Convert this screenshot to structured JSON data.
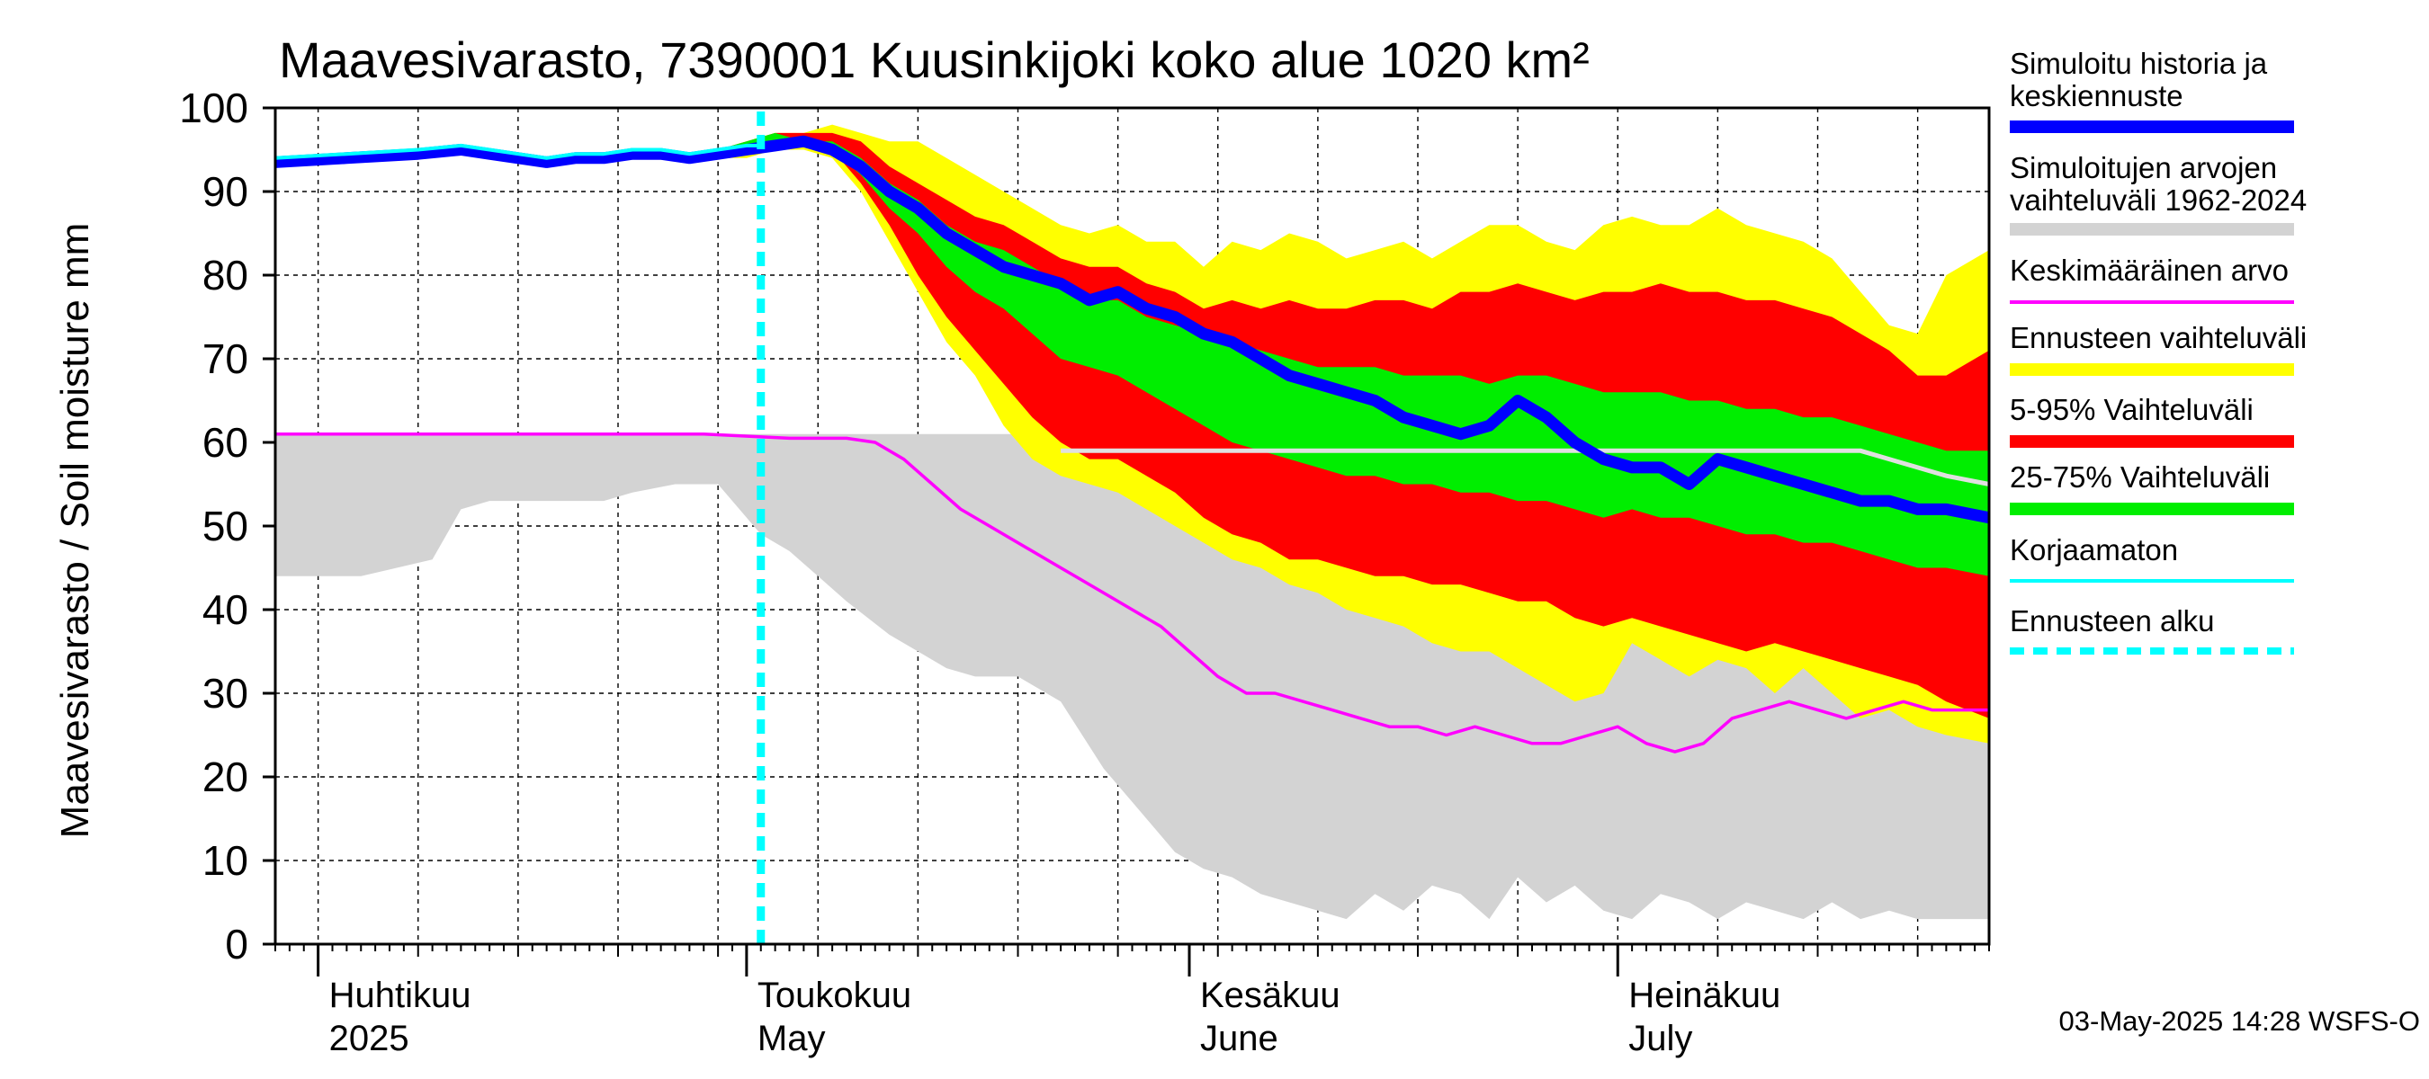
{
  "chart_data": {
    "type": "area",
    "title": "Maavesivarasto, 7390001 Kuusinkijoki koko alue 1020 km²",
    "ylabel": "Maavesivarasto / Soil moisture   mm",
    "ylim": [
      0,
      100
    ],
    "yticks": [
      0,
      10,
      20,
      30,
      40,
      50,
      60,
      70,
      80,
      90,
      100
    ],
    "x_domain_days": [
      0,
      120
    ],
    "x_start_date": "2025-03-29",
    "forecast_start_day": 34,
    "month_labels": [
      {
        "fi": "Huhtikuu",
        "en": "2025",
        "day": 3
      },
      {
        "fi": "Toukokuu",
        "en": "May",
        "day": 33
      },
      {
        "fi": "Kesäkuu",
        "en": "June",
        "day": 64
      },
      {
        "fi": "Heinäkuu",
        "en": "July",
        "day": 94
      }
    ],
    "month_boundaries": [
      3,
      33,
      64,
      94
    ],
    "series": [
      {
        "name": "Simuloitujen arvojen vaihteluväli 1962-2024",
        "kind": "band",
        "color": "#d3d3d3",
        "x": [
          0,
          6,
          11,
          13,
          15,
          18,
          21,
          23,
          25,
          28,
          31,
          34,
          36,
          38,
          40,
          43,
          45,
          47,
          49,
          52,
          55,
          58,
          61,
          63,
          65,
          67,
          69,
          71,
          73,
          75,
          77,
          79,
          81,
          83,
          85,
          87,
          89,
          91,
          93,
          95,
          97,
          99,
          101,
          103,
          105,
          107,
          109,
          111,
          113,
          115,
          117,
          120
        ],
        "low": [
          44,
          44,
          46,
          52,
          53,
          53,
          53,
          53,
          54,
          55,
          55,
          49,
          47,
          44,
          41,
          37,
          35,
          33,
          32,
          32,
          29,
          21,
          15,
          11,
          9,
          8,
          6,
          5,
          4,
          3,
          6,
          4,
          7,
          6,
          3,
          8,
          5,
          7,
          4,
          3,
          6,
          5,
          3,
          5,
          4,
          3,
          5,
          3,
          4,
          3,
          3,
          3
        ],
        "high": [
          61,
          61,
          61,
          61,
          61,
          61,
          61,
          61,
          61,
          61,
          61,
          61,
          61,
          61,
          61,
          61,
          61,
          61,
          61,
          61,
          60,
          60,
          60,
          60,
          60,
          60,
          60,
          60,
          60,
          60,
          60,
          60,
          60,
          60,
          60,
          60,
          60,
          60,
          60,
          60,
          60,
          60,
          60,
          60,
          60,
          60,
          60,
          60,
          59,
          58,
          57,
          56
        ]
      },
      {
        "name": "Ennusteen vaihteluväli",
        "kind": "band",
        "color": "#ffff00",
        "x": [
          31,
          33,
          35,
          37,
          39,
          41,
          43,
          45,
          47,
          49,
          51,
          53,
          55,
          57,
          59,
          61,
          63,
          65,
          67,
          69,
          71,
          73,
          75,
          77,
          79,
          81,
          83,
          85,
          87,
          89,
          91,
          93,
          95,
          97,
          99,
          101,
          103,
          105,
          107,
          109,
          111,
          113,
          115,
          117,
          120
        ],
        "low": [
          94,
          94,
          95,
          95,
          94,
          90,
          84,
          78,
          72,
          68,
          62,
          58,
          56,
          55,
          54,
          52,
          50,
          48,
          46,
          45,
          43,
          42,
          40,
          39,
          38,
          36,
          35,
          35,
          33,
          31,
          29,
          30,
          36,
          34,
          32,
          34,
          33,
          30,
          33,
          30,
          27,
          28,
          26,
          25,
          24
        ],
        "high": [
          95,
          96,
          97,
          97,
          98,
          97,
          96,
          96,
          94,
          92,
          90,
          88,
          86,
          85,
          86,
          84,
          84,
          81,
          84,
          83,
          85,
          84,
          82,
          83,
          84,
          82,
          84,
          86,
          86,
          84,
          83,
          86,
          87,
          86,
          86,
          88,
          86,
          85,
          84,
          82,
          78,
          74,
          73,
          80,
          83
        ]
      },
      {
        "name": "5-95% Vaihteluväli",
        "kind": "band",
        "color": "#ff0000",
        "x": [
          31,
          33,
          35,
          37,
          39,
          41,
          43,
          45,
          47,
          49,
          51,
          53,
          55,
          57,
          59,
          61,
          63,
          65,
          67,
          69,
          71,
          73,
          75,
          77,
          79,
          81,
          83,
          85,
          87,
          89,
          91,
          93,
          95,
          97,
          99,
          101,
          103,
          105,
          107,
          109,
          111,
          113,
          115,
          117,
          120
        ],
        "low": [
          94,
          95,
          96,
          96,
          95,
          91,
          86,
          80,
          75,
          71,
          67,
          63,
          60,
          58,
          58,
          56,
          54,
          51,
          49,
          48,
          46,
          46,
          45,
          44,
          44,
          43,
          43,
          42,
          41,
          41,
          39,
          38,
          39,
          38,
          37,
          36,
          35,
          36,
          35,
          34,
          33,
          32,
          31,
          29,
          27
        ],
        "high": [
          95,
          96,
          97,
          97,
          97,
          96,
          93,
          91,
          89,
          87,
          86,
          84,
          82,
          81,
          81,
          79,
          78,
          76,
          77,
          76,
          77,
          76,
          76,
          77,
          77,
          76,
          78,
          78,
          79,
          78,
          77,
          78,
          78,
          79,
          78,
          78,
          77,
          77,
          76,
          75,
          73,
          71,
          68,
          68,
          71
        ]
      },
      {
        "name": "25-75% Vaihteluväli",
        "kind": "band",
        "color": "#00ee00",
        "x": [
          31,
          33,
          35,
          37,
          39,
          41,
          43,
          45,
          47,
          49,
          51,
          53,
          55,
          57,
          59,
          61,
          63,
          65,
          67,
          69,
          71,
          73,
          75,
          77,
          79,
          81,
          83,
          85,
          87,
          89,
          91,
          93,
          95,
          97,
          99,
          101,
          103,
          105,
          107,
          109,
          111,
          113,
          115,
          117,
          120
        ],
        "low": [
          94,
          95,
          96,
          96,
          95,
          92,
          88,
          85,
          81,
          78,
          76,
          73,
          70,
          69,
          68,
          66,
          64,
          62,
          60,
          59,
          58,
          57,
          56,
          56,
          55,
          55,
          54,
          54,
          53,
          53,
          52,
          51,
          52,
          51,
          51,
          50,
          49,
          49,
          48,
          48,
          47,
          46,
          45,
          45,
          44
        ],
        "high": [
          95,
          96,
          97,
          96,
          96,
          94,
          91,
          89,
          86,
          84,
          83,
          81,
          79,
          77,
          77,
          75,
          74,
          73,
          72,
          71,
          70,
          69,
          69,
          69,
          68,
          68,
          68,
          67,
          68,
          68,
          67,
          66,
          66,
          66,
          65,
          65,
          64,
          64,
          63,
          63,
          62,
          61,
          60,
          59,
          59
        ]
      },
      {
        "name": "Keskimääräinen arvo",
        "kind": "line",
        "color": "#ff00ff",
        "x": [
          0,
          10,
          20,
          30,
          36,
          40,
          42,
          44,
          46,
          48,
          50,
          52,
          54,
          56,
          58,
          60,
          62,
          64,
          66,
          68,
          70,
          72,
          74,
          76,
          78,
          80,
          82,
          84,
          86,
          88,
          90,
          92,
          94,
          96,
          98,
          100,
          102,
          104,
          106,
          108,
          110,
          112,
          114,
          116,
          118,
          120
        ],
        "values": [
          61,
          61,
          61,
          61,
          60.5,
          60.5,
          60,
          58,
          55,
          52,
          50,
          48,
          46,
          44,
          42,
          40,
          38,
          35,
          32,
          30,
          30,
          29,
          28,
          27,
          26,
          26,
          25,
          26,
          25,
          24,
          24,
          25,
          26,
          24,
          23,
          24,
          27,
          28,
          29,
          28,
          27,
          28,
          29,
          28,
          28,
          28
        ]
      },
      {
        "name": "Simuloitu historia ja keskiennuste",
        "kind": "line",
        "color": "#0000ff",
        "x": [
          0,
          5,
          10,
          13,
          15,
          17,
          19,
          21,
          23,
          25,
          27,
          29,
          31,
          33,
          35,
          37,
          39,
          41,
          43,
          45,
          47,
          49,
          51,
          53,
          55,
          57,
          59,
          61,
          63,
          65,
          67,
          69,
          71,
          73,
          75,
          77,
          79,
          81,
          83,
          85,
          87,
          89,
          91,
          93,
          95,
          97,
          99,
          101,
          103,
          105,
          107,
          109,
          111,
          113,
          115,
          117,
          120
        ],
        "values": [
          93.5,
          94,
          94.5,
          95,
          94.5,
          94,
          93.5,
          94,
          94,
          94.5,
          94.5,
          94,
          94.5,
          95,
          95.5,
          96,
          95,
          93,
          90,
          88,
          85,
          83,
          81,
          80,
          79,
          77,
          78,
          76,
          75,
          73,
          72,
          70,
          68,
          67,
          66,
          65,
          63,
          62,
          61,
          62,
          65,
          63,
          60,
          58,
          57,
          57,
          55,
          58,
          57,
          56,
          55,
          54,
          53,
          53,
          52,
          52,
          51
        ]
      },
      {
        "name": "Korjaamaton",
        "kind": "line",
        "color": "#00ffff",
        "x": [
          0,
          5,
          10,
          13,
          15,
          17,
          19,
          21,
          23,
          25,
          27,
          29,
          31,
          33,
          34
        ],
        "values": [
          94,
          94.5,
          95,
          95.5,
          95,
          94.5,
          94,
          94.5,
          94.5,
          95,
          95,
          94.5,
          95,
          95.5,
          95.5
        ]
      }
    ],
    "legend": {
      "placement": "right",
      "items": [
        {
          "label": "Simuloitu historia ja keskiennuste",
          "color": "#0000ff",
          "style": "thick"
        },
        {
          "label": "Simuloitujen arvojen vaihteluväli 1962-2024",
          "color": "#d3d3d3",
          "style": "thick"
        },
        {
          "label": "Keskimääräinen arvo",
          "color": "#ff00ff",
          "style": "thin"
        },
        {
          "label": "Ennusteen vaihteluväli",
          "color": "#ffff00",
          "style": "thick"
        },
        {
          "label": "5-95% Vaihteluväli",
          "color": "#ff0000",
          "style": "thick"
        },
        {
          "label": "25-75% Vaihteluväli",
          "color": "#00ee00",
          "style": "thick"
        },
        {
          "label": "Korjaamaton",
          "color": "#00ffff",
          "style": "thin"
        },
        {
          "label": "Ennusteen alku",
          "color": "#00ffff",
          "style": "dashed"
        }
      ]
    },
    "footer": "03-May-2025 14:28 WSFS-O",
    "grid": true
  }
}
